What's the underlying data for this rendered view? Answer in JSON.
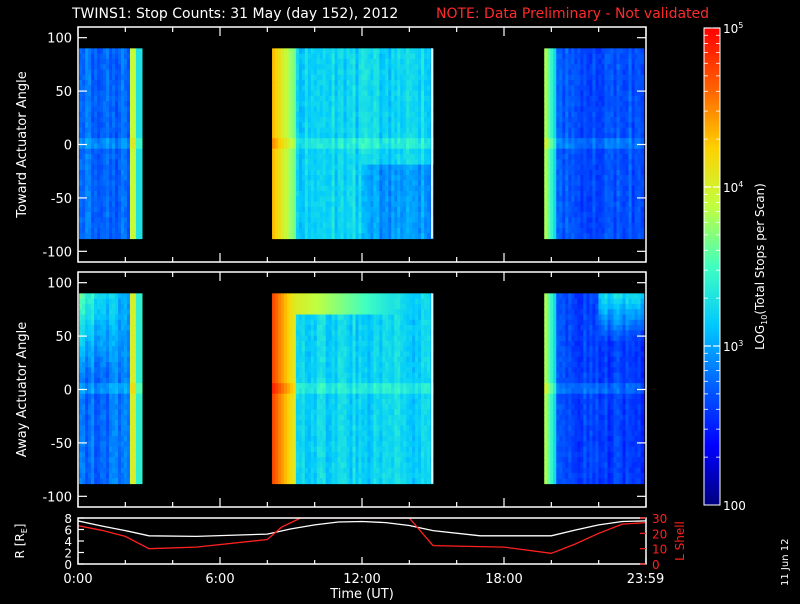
{
  "title": "TWINS1: Stop Counts: 31 May (day 152), 2012",
  "note": "NOTE: Data Preliminary - Not validated",
  "stamp": "11 Jun 12",
  "chart_data": [
    {
      "type": "heatmap",
      "name": "toward",
      "ylabel": "Toward Actuator Angle",
      "xlim": [
        0,
        24
      ],
      "ylim": [
        -110,
        110
      ],
      "yticks": [
        "100",
        "50",
        "0",
        "-50",
        "-100"
      ],
      "ytick_values": [
        100,
        50,
        0,
        -50,
        -100
      ],
      "data_angle_range": [
        -88,
        90
      ],
      "segments": [
        {
          "name": "pass-1",
          "x_start": 0.05,
          "x_end": 2.7,
          "dominant_log10_counts": 2.8,
          "edge_log10_counts": 3.9
        },
        {
          "name": "pass-2",
          "x_start": 8.2,
          "x_end": 15.0,
          "dominant_log10_counts": 3.2,
          "edge_log10_counts": 4.1
        },
        {
          "name": "pass-3",
          "x_start": 19.7,
          "x_end": 23.9,
          "dominant_log10_counts": 2.7,
          "edge_log10_counts": 3.8
        }
      ]
    },
    {
      "type": "heatmap",
      "name": "away",
      "ylabel": "Away Actuator Angle",
      "xlim": [
        0,
        24
      ],
      "ylim": [
        -110,
        110
      ],
      "yticks": [
        "100",
        "50",
        "0",
        "-50",
        "-100"
      ],
      "ytick_values": [
        100,
        50,
        0,
        -50,
        -100
      ],
      "data_angle_range": [
        -88,
        90
      ],
      "segments": [
        {
          "name": "pass-1",
          "x_start": 0.05,
          "x_end": 2.7,
          "dominant_log10_counts": 2.8,
          "edge_log10_counts": 4.0
        },
        {
          "name": "pass-2",
          "x_start": 8.2,
          "x_end": 15.0,
          "dominant_log10_counts": 3.2,
          "edge_log10_counts": 4.5
        },
        {
          "name": "pass-3",
          "x_start": 19.7,
          "x_end": 23.9,
          "dominant_log10_counts": 2.6,
          "edge_log10_counts": 3.8
        }
      ]
    },
    {
      "type": "line",
      "name": "orbit",
      "ylabel_left": "R [R",
      "ylabel_left_sub": "E",
      "ylabel_left_end": "]",
      "ylabel_right": "L Shell",
      "xlabel": "Time (UT)",
      "xticks": [
        "0:00",
        "6:00",
        "12:00",
        "18:00",
        "23:59"
      ],
      "xtick_values": [
        0,
        6,
        12,
        18,
        23.98
      ],
      "left_yticks": [
        "8",
        "6",
        "4",
        "2",
        "0"
      ],
      "left_ytick_values": [
        8,
        6,
        4,
        2,
        0
      ],
      "left_ylim": [
        0,
        8
      ],
      "right_yticks": [
        "30",
        "20",
        "10",
        "0"
      ],
      "right_ytick_values": [
        30,
        20,
        10,
        0
      ],
      "right_ylim": [
        0,
        30
      ],
      "series": [
        {
          "name": "R",
          "color": "#ffffff",
          "x": [
            0,
            1,
            2,
            3,
            5,
            8,
            9,
            10,
            11,
            12,
            13,
            14,
            15,
            17,
            20,
            21,
            22,
            23,
            24
          ],
          "y": [
            7.5,
            6.6,
            5.8,
            4.9,
            4.8,
            5.2,
            6.1,
            6.8,
            7.3,
            7.4,
            7.2,
            6.7,
            5.8,
            4.9,
            4.9,
            5.9,
            6.8,
            7.4,
            7.5
          ]
        },
        {
          "name": "L Shell",
          "color": "#ff2020",
          "x": [
            0,
            1,
            2,
            3,
            5,
            8,
            8.6,
            9.4,
            14,
            15,
            18,
            20,
            21,
            22,
            23,
            24
          ],
          "y": [
            25,
            22,
            18,
            10,
            11,
            16,
            24,
            30,
            30,
            12,
            11,
            7,
            13,
            20,
            26,
            27
          ]
        }
      ]
    },
    {
      "type": "colorbar",
      "label_main": "LOG",
      "label_sub": "10",
      "label_rest": "(Total Stops per Scan)",
      "range_log10": [
        2,
        5
      ],
      "ticks": [
        {
          "value_log10": 5,
          "base": "10",
          "exp": "5"
        },
        {
          "value_log10": 4,
          "base": "10",
          "exp": "4"
        },
        {
          "value_log10": 3,
          "base": "10",
          "exp": "3"
        }
      ],
      "bottom_label": "100",
      "colors": [
        "#00007f",
        "#0000ff",
        "#0060ff",
        "#00c8ff",
        "#40ffc0",
        "#c0ff40",
        "#ffd000",
        "#ff6000",
        "#ff0000"
      ]
    }
  ]
}
